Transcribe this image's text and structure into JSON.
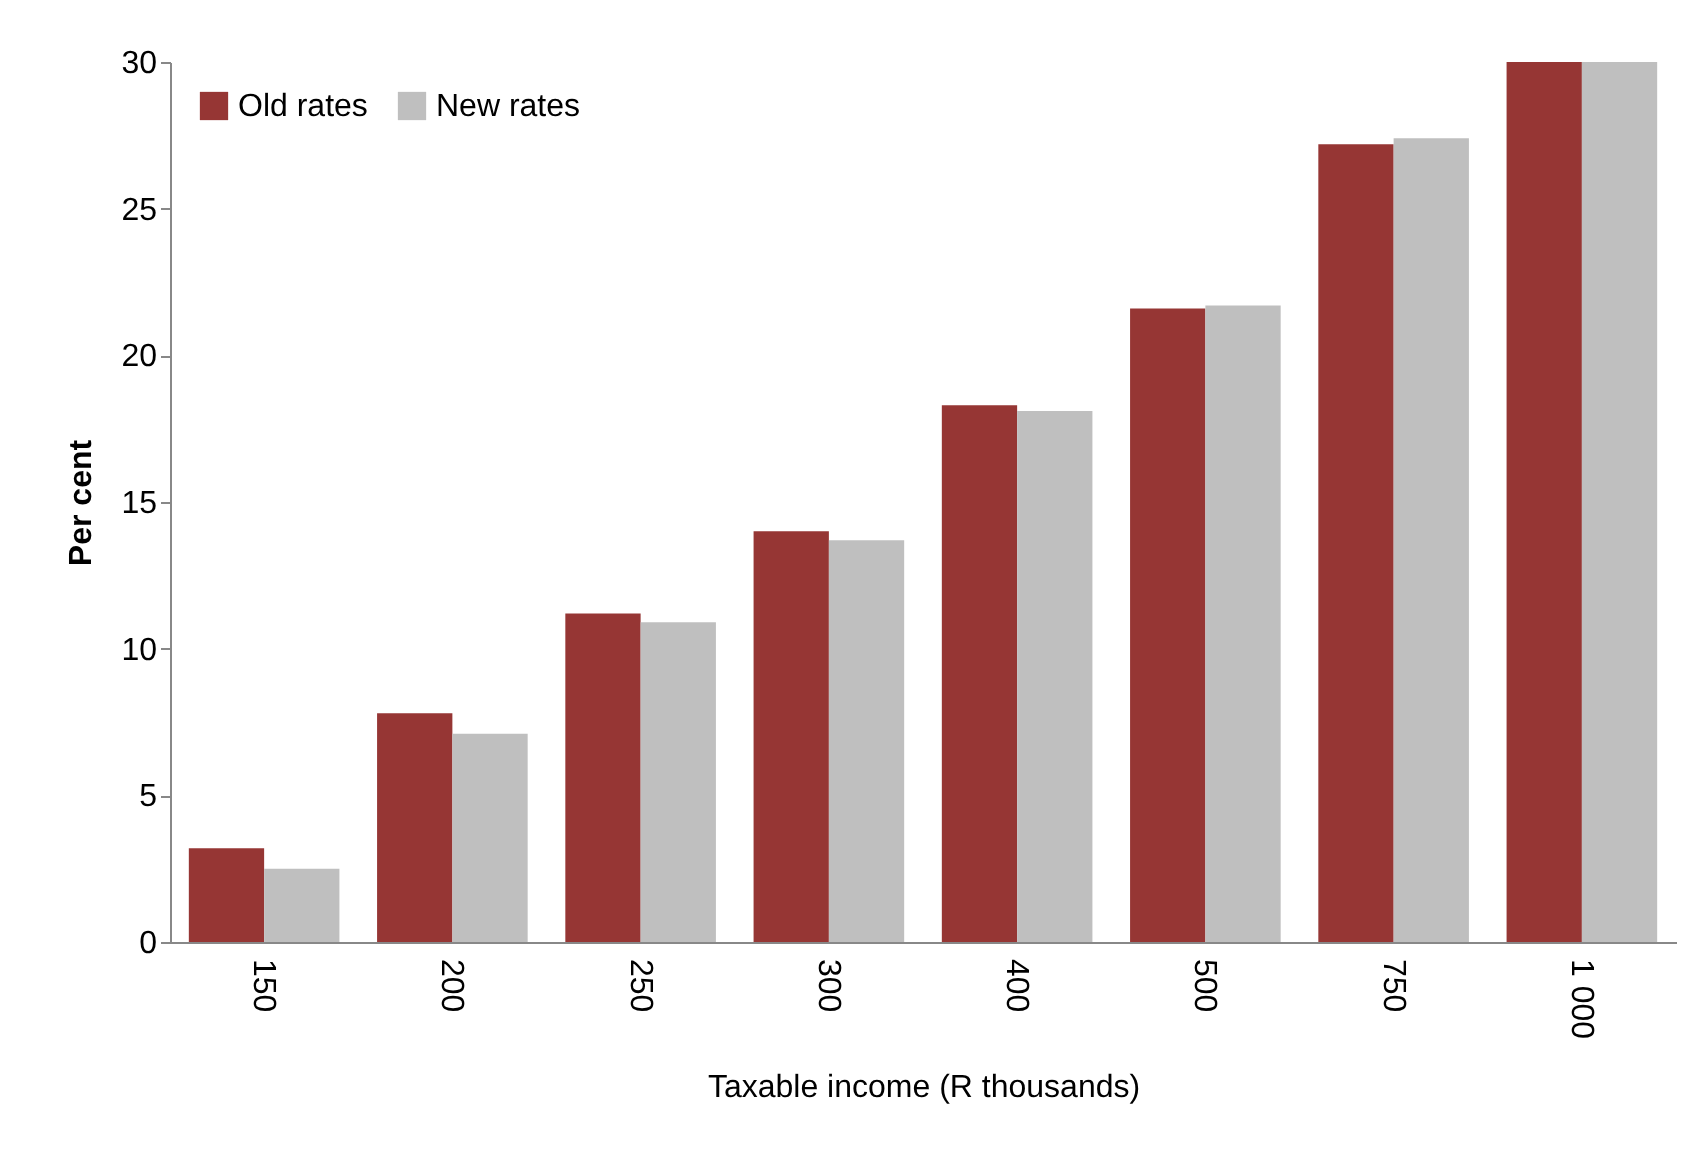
{
  "chart_data": {
    "type": "bar",
    "xlabel": "Taxable income (R thousands)",
    "ylabel": "Per cent",
    "categories": [
      "150",
      "200",
      "250",
      "300",
      "400",
      "500",
      "750",
      "1 000"
    ],
    "series": [
      {
        "name": "Old rates",
        "color": "#963634",
        "values": [
          3.2,
          7.8,
          11.2,
          14.0,
          18.3,
          21.6,
          27.2,
          30.0
        ]
      },
      {
        "name": "New rates",
        "color": "#bfbfbf",
        "values": [
          2.5,
          7.1,
          10.9,
          13.7,
          18.1,
          21.7,
          27.4,
          30.0
        ]
      }
    ],
    "ylim": [
      0,
      30
    ],
    "yticks": [
      0,
      5,
      10,
      15,
      20,
      25,
      30
    ],
    "grid": false,
    "legend": "top left"
  }
}
